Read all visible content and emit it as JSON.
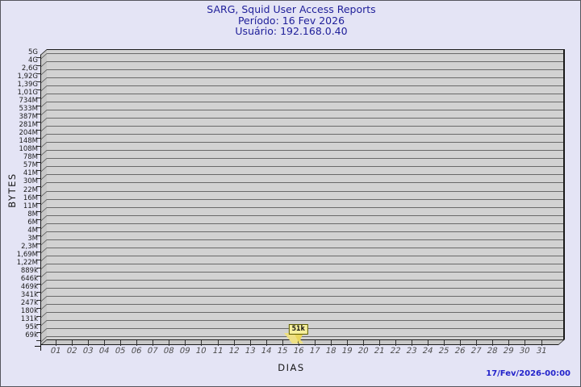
{
  "page": {
    "background_color": "#e4e4f5",
    "border_color": "#55555e"
  },
  "header": {
    "title": "SARG, Squid User Access Reports",
    "period": "Período: 16 Fev 2026",
    "user": "Usuário: 192.168.0.40",
    "text_color": "#20209a"
  },
  "footer": {
    "datestamp": "17/Fev/2026-00:00",
    "text_color": "#2323cb"
  },
  "chart_data": {
    "type": "bar",
    "title": "SARG, Squid User Access Reports",
    "subtitle": [
      "Período: 16 Fev 2026",
      "Usuário: 192.168.0.40"
    ],
    "xlabel": "DIAS",
    "ylabel": "BYTES",
    "y_scale": "logarithmic",
    "grid": "horizontal",
    "legend": "none",
    "y_axis_ticks": [
      "5G",
      "4G",
      "2,6G",
      "1,92G",
      "1,39G",
      "1,01G",
      "734M",
      "533M",
      "387M",
      "281M",
      "204M",
      "148M",
      "108M",
      "78M",
      "57M",
      "41M",
      "30M",
      "22M",
      "16M",
      "11M",
      "8M",
      "6M",
      "4M",
      "3M",
      "2,3M",
      "1,69M",
      "1,22M",
      "889k",
      "646k",
      "469k",
      "341k",
      "247k",
      "180k",
      "131k",
      "95k",
      "69k"
    ],
    "categories": [
      "01",
      "02",
      "03",
      "04",
      "05",
      "06",
      "07",
      "08",
      "09",
      "10",
      "11",
      "12",
      "13",
      "14",
      "15",
      "16",
      "17",
      "18",
      "19",
      "20",
      "21",
      "22",
      "23",
      "24",
      "25",
      "26",
      "27",
      "28",
      "29",
      "30",
      "31"
    ],
    "values": [
      null,
      null,
      null,
      null,
      null,
      null,
      null,
      null,
      null,
      null,
      null,
      null,
      null,
      null,
      null,
      51000,
      null,
      null,
      null,
      null,
      null,
      null,
      null,
      null,
      null,
      null,
      null,
      null,
      null,
      null,
      null
    ],
    "annotations": [
      {
        "category": "16",
        "label": "51k"
      }
    ],
    "colors": {
      "plot_background": "#d2d2d2",
      "gridline": "#696969",
      "wall_3d": "#c7c7c7",
      "edge": "#1a1a1a",
      "annotation_background": "#f6ef9d",
      "annotation_border": "#5c5c00"
    }
  }
}
